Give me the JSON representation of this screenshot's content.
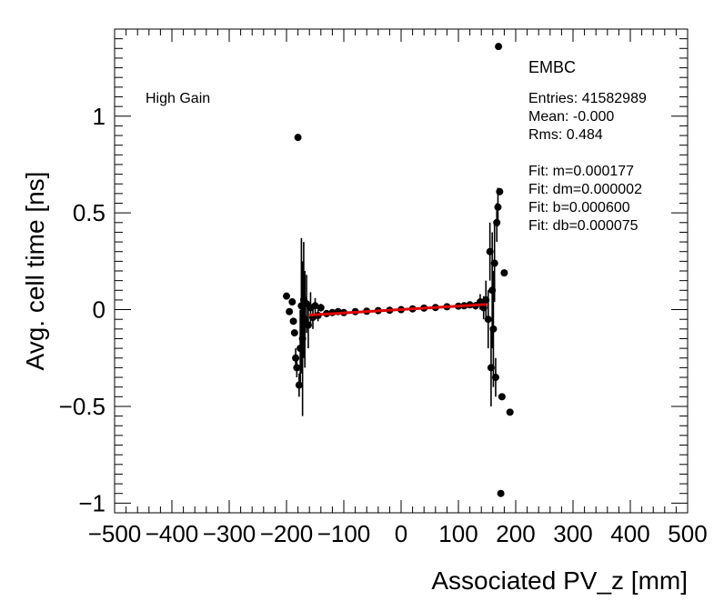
{
  "chart_data": {
    "type": "scatter",
    "title": "",
    "xlabel": "Associated PV_z [mm]",
    "ylabel": "Avg. cell time [ns]",
    "xlim": [
      -500,
      500
    ],
    "ylim": [
      -1.05,
      1.45
    ],
    "xticks": [
      -500,
      -400,
      -300,
      -200,
      -100,
      0,
      100,
      200,
      300,
      400,
      500
    ],
    "xtick_labels": [
      "−500",
      "−400",
      "−300",
      "−200",
      "−100",
      "0",
      "100",
      "200",
      "300",
      "400",
      "500"
    ],
    "yticks": [
      -1,
      -0.5,
      0,
      0.5,
      1
    ],
    "ytick_labels": [
      "−1",
      "−0.5",
      "0",
      "0.5",
      "1"
    ],
    "grid": false,
    "annotations": {
      "gain_label": "High Gain",
      "region": "EMBC",
      "stats": [
        "Entries: 41582989",
        "Mean: -0.000",
        "Rms: 0.484",
        "",
        "Fit: m=0.000177",
        "Fit: dm=0.000002",
        "Fit: b=0.000600",
        "Fit: db=0.000075"
      ]
    },
    "fit_line": {
      "m": 0.000177,
      "b": 0.0006,
      "x_range": [
        -160,
        150
      ],
      "color": "#e00000"
    },
    "series": [
      {
        "points": [
          {
            "x": -200,
            "y": 0.07,
            "err": 0.0
          },
          {
            "x": -195,
            "y": -0.01,
            "err": 0.0
          },
          {
            "x": -190,
            "y": 0.04,
            "err": 0.0
          },
          {
            "x": -188,
            "y": -0.06,
            "err": 0.0
          },
          {
            "x": -186,
            "y": -0.12,
            "err": 0.0
          },
          {
            "x": -184,
            "y": -0.25,
            "err": 0.05
          },
          {
            "x": -182,
            "y": -0.3,
            "err": 0.05
          },
          {
            "x": -180,
            "y": 0.89,
            "err": 0.0
          },
          {
            "x": -178,
            "y": -0.39,
            "err": 0.06
          },
          {
            "x": -176,
            "y": -0.2,
            "err": 0.2
          },
          {
            "x": -174,
            "y": 0.02,
            "err": 0.35
          },
          {
            "x": -172,
            "y": -0.15,
            "err": 0.4
          },
          {
            "x": -170,
            "y": 0.05,
            "err": 0.3
          },
          {
            "x": -168,
            "y": -0.05,
            "err": 0.25
          },
          {
            "x": -165,
            "y": 0.03,
            "err": 0.15
          },
          {
            "x": -162,
            "y": -0.08,
            "err": 0.12
          },
          {
            "x": -158,
            "y": 0.01,
            "err": 0.08
          },
          {
            "x": -154,
            "y": -0.04,
            "err": 0.06
          },
          {
            "x": -150,
            "y": 0.02,
            "err": 0.04
          },
          {
            "x": -145,
            "y": -0.03,
            "err": 0.03
          },
          {
            "x": -140,
            "y": 0.01,
            "err": 0.02
          },
          {
            "x": -130,
            "y": -0.02,
            "err": 0.015
          },
          {
            "x": -120,
            "y": -0.015,
            "err": 0.012
          },
          {
            "x": -110,
            "y": -0.01,
            "err": 0.01
          },
          {
            "x": -100,
            "y": -0.015,
            "err": 0.008
          },
          {
            "x": -80,
            "y": -0.01,
            "err": 0.006
          },
          {
            "x": -60,
            "y": -0.008,
            "err": 0.005
          },
          {
            "x": -40,
            "y": -0.005,
            "err": 0.005
          },
          {
            "x": -20,
            "y": -0.003,
            "err": 0.005
          },
          {
            "x": 0,
            "y": 0.0,
            "err": 0.005
          },
          {
            "x": 20,
            "y": 0.004,
            "err": 0.005
          },
          {
            "x": 40,
            "y": 0.008,
            "err": 0.005
          },
          {
            "x": 60,
            "y": 0.011,
            "err": 0.006
          },
          {
            "x": 80,
            "y": 0.015,
            "err": 0.007
          },
          {
            "x": 100,
            "y": 0.018,
            "err": 0.009
          },
          {
            "x": 110,
            "y": 0.02,
            "err": 0.012
          },
          {
            "x": 120,
            "y": 0.025,
            "err": 0.015
          },
          {
            "x": 130,
            "y": 0.02,
            "err": 0.02
          },
          {
            "x": 138,
            "y": 0.04,
            "err": 0.04
          },
          {
            "x": 144,
            "y": 0.01,
            "err": 0.06
          },
          {
            "x": 148,
            "y": 0.05,
            "err": 0.1
          },
          {
            "x": 152,
            "y": -0.05,
            "err": 0.15
          },
          {
            "x": 155,
            "y": 0.3,
            "err": 0.15
          },
          {
            "x": 157,
            "y": -0.3,
            "err": 0.2
          },
          {
            "x": 159,
            "y": 0.1,
            "err": 0.3
          },
          {
            "x": 161,
            "y": -0.1,
            "err": 0.3
          },
          {
            "x": 163,
            "y": 0.24,
            "err": 0.2
          },
          {
            "x": 165,
            "y": -0.35,
            "err": 0.1
          },
          {
            "x": 167,
            "y": 0.45,
            "err": 0.1
          },
          {
            "x": 169,
            "y": 0.53,
            "err": 0.1
          },
          {
            "x": 170,
            "y": 1.36,
            "err": 0.0
          },
          {
            "x": 172,
            "y": 0.61,
            "err": 0.0
          },
          {
            "x": 174,
            "y": -0.95,
            "err": 0.0
          },
          {
            "x": 176,
            "y": -0.45,
            "err": 0.0
          },
          {
            "x": 180,
            "y": 0.19,
            "err": 0.0
          },
          {
            "x": 190,
            "y": -0.53,
            "err": 0.0
          }
        ]
      }
    ]
  }
}
